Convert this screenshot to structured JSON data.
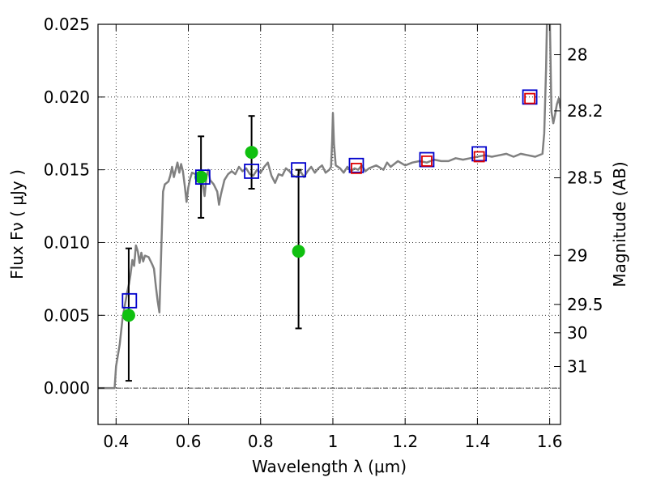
{
  "chart_data": {
    "type": "scatter",
    "xlabel": "Wavelength  λ (μm)",
    "ylabel": "Flux  Fν  ( μJy )",
    "y2label": "Magnitude (AB)",
    "xlim": [
      0.35,
      1.63
    ],
    "ylim": [
      -0.0025,
      0.025
    ],
    "grid": true,
    "x_ticks": [
      {
        "value": 0.4,
        "label": "0.4"
      },
      {
        "value": 0.6,
        "label": "0.6"
      },
      {
        "value": 0.8,
        "label": "0.8"
      },
      {
        "value": 1.0,
        "label": "1"
      },
      {
        "value": 1.2,
        "label": "1.2"
      },
      {
        "value": 1.4,
        "label": "1.4"
      },
      {
        "value": 1.6,
        "label": "1.6"
      }
    ],
    "y_ticks": [
      {
        "value": 0.0,
        "label": "0.000"
      },
      {
        "value": 0.005,
        "label": "0.005"
      },
      {
        "value": 0.01,
        "label": "0.010"
      },
      {
        "value": 0.015,
        "label": "0.015"
      },
      {
        "value": 0.02,
        "label": "0.020"
      },
      {
        "value": 0.025,
        "label": "0.025"
      }
    ],
    "y2_ticks": [
      {
        "flux": 0.02291,
        "label": "28"
      },
      {
        "flux": 0.01905,
        "label": "28.2"
      },
      {
        "flux": 0.01445,
        "label": "28.5"
      },
      {
        "flux": 0.00912,
        "label": "29"
      },
      {
        "flux": 0.00575,
        "label": "29.5"
      },
      {
        "flux": 0.0038,
        "label": "30"
      },
      {
        "flux": 0.00148,
        "label": "31"
      }
    ],
    "series": [
      {
        "kind": "line",
        "color": "#808080",
        "points": [
          [
            0.35,
            0.0
          ],
          [
            0.38,
            0.0
          ],
          [
            0.396,
            0.0
          ],
          [
            0.4,
            0.0015
          ],
          [
            0.41,
            0.003
          ],
          [
            0.418,
            0.0048
          ],
          [
            0.425,
            0.0058
          ],
          [
            0.43,
            0.0065
          ],
          [
            0.436,
            0.0072
          ],
          [
            0.44,
            0.0078
          ],
          [
            0.445,
            0.0088
          ],
          [
            0.45,
            0.0084
          ],
          [
            0.455,
            0.0098
          ],
          [
            0.46,
            0.0094
          ],
          [
            0.465,
            0.0086
          ],
          [
            0.47,
            0.0093
          ],
          [
            0.475,
            0.0087
          ],
          [
            0.48,
            0.0091
          ],
          [
            0.49,
            0.009
          ],
          [
            0.5,
            0.0085
          ],
          [
            0.505,
            0.0082
          ],
          [
            0.51,
            0.007
          ],
          [
            0.515,
            0.006
          ],
          [
            0.52,
            0.0052
          ],
          [
            0.525,
            0.0095
          ],
          [
            0.53,
            0.0135
          ],
          [
            0.535,
            0.014
          ],
          [
            0.54,
            0.0141
          ],
          [
            0.545,
            0.0142
          ],
          [
            0.55,
            0.0146
          ],
          [
            0.555,
            0.0152
          ],
          [
            0.56,
            0.0145
          ],
          [
            0.565,
            0.015
          ],
          [
            0.57,
            0.0155
          ],
          [
            0.575,
            0.0148
          ],
          [
            0.58,
            0.0154
          ],
          [
            0.585,
            0.0149
          ],
          [
            0.59,
            0.0139
          ],
          [
            0.595,
            0.0128
          ],
          [
            0.6,
            0.0138
          ],
          [
            0.605,
            0.0144
          ],
          [
            0.61,
            0.0148
          ],
          [
            0.62,
            0.0147
          ],
          [
            0.63,
            0.0145
          ],
          [
            0.64,
            0.014
          ],
          [
            0.645,
            0.0132
          ],
          [
            0.65,
            0.0145
          ],
          [
            0.655,
            0.015
          ],
          [
            0.66,
            0.0143
          ],
          [
            0.67,
            0.014
          ],
          [
            0.68,
            0.0135
          ],
          [
            0.685,
            0.0126
          ],
          [
            0.69,
            0.0133
          ],
          [
            0.7,
            0.0143
          ],
          [
            0.71,
            0.0147
          ],
          [
            0.72,
            0.0149
          ],
          [
            0.73,
            0.0147
          ],
          [
            0.74,
            0.0152
          ],
          [
            0.75,
            0.0149
          ],
          [
            0.76,
            0.0151
          ],
          [
            0.77,
            0.0147
          ],
          [
            0.78,
            0.0146
          ],
          [
            0.79,
            0.015
          ],
          [
            0.8,
            0.0148
          ],
          [
            0.81,
            0.0152
          ],
          [
            0.82,
            0.0155
          ],
          [
            0.83,
            0.0146
          ],
          [
            0.84,
            0.0141
          ],
          [
            0.85,
            0.0147
          ],
          [
            0.86,
            0.0146
          ],
          [
            0.87,
            0.0151
          ],
          [
            0.88,
            0.0149
          ],
          [
            0.89,
            0.0146
          ],
          [
            0.9,
            0.0145
          ],
          [
            0.91,
            0.0149
          ],
          [
            0.92,
            0.0145
          ],
          [
            0.93,
            0.0149
          ],
          [
            0.94,
            0.0152
          ],
          [
            0.95,
            0.0148
          ],
          [
            0.96,
            0.0151
          ],
          [
            0.97,
            0.0153
          ],
          [
            0.98,
            0.0148
          ],
          [
            0.99,
            0.015
          ],
          [
            0.995,
            0.0152
          ],
          [
            0.998,
            0.017
          ],
          [
            1.0,
            0.0189
          ],
          [
            1.003,
            0.0168
          ],
          [
            1.008,
            0.0153
          ],
          [
            1.02,
            0.0151
          ],
          [
            1.03,
            0.0148
          ],
          [
            1.04,
            0.0152
          ],
          [
            1.05,
            0.0149
          ],
          [
            1.06,
            0.0151
          ],
          [
            1.07,
            0.015
          ],
          [
            1.08,
            0.0153
          ],
          [
            1.09,
            0.0149
          ],
          [
            1.1,
            0.0151
          ],
          [
            1.12,
            0.0153
          ],
          [
            1.14,
            0.015
          ],
          [
            1.15,
            0.0155
          ],
          [
            1.16,
            0.0152
          ],
          [
            1.18,
            0.0156
          ],
          [
            1.2,
            0.0153
          ],
          [
            1.22,
            0.0155
          ],
          [
            1.24,
            0.0156
          ],
          [
            1.26,
            0.0155
          ],
          [
            1.28,
            0.0157
          ],
          [
            1.3,
            0.0156
          ],
          [
            1.32,
            0.0156
          ],
          [
            1.34,
            0.0158
          ],
          [
            1.36,
            0.0157
          ],
          [
            1.38,
            0.0158
          ],
          [
            1.4,
            0.0159
          ],
          [
            1.42,
            0.016
          ],
          [
            1.44,
            0.0159
          ],
          [
            1.46,
            0.016
          ],
          [
            1.48,
            0.0161
          ],
          [
            1.5,
            0.0159
          ],
          [
            1.52,
            0.0161
          ],
          [
            1.54,
            0.016
          ],
          [
            1.56,
            0.0159
          ],
          [
            1.58,
            0.0161
          ],
          [
            1.585,
            0.0175
          ],
          [
            1.59,
            0.022
          ],
          [
            1.593,
            0.026
          ],
          [
            1.6,
            0.026
          ],
          [
            1.605,
            0.019
          ],
          [
            1.61,
            0.0182
          ],
          [
            1.615,
            0.0188
          ],
          [
            1.62,
            0.0195
          ],
          [
            1.625,
            0.0199
          ],
          [
            1.63,
            0.0192
          ]
        ]
      },
      {
        "kind": "markers",
        "marker": "circle",
        "color": "#10c010",
        "points": [
          {
            "x": 0.435,
            "y": 0.005,
            "err_lo": 0.0005,
            "err_hi": 0.0096
          },
          {
            "x": 0.635,
            "y": 0.0145,
            "err_lo": 0.0117,
            "err_hi": 0.0173
          },
          {
            "x": 0.775,
            "y": 0.0162,
            "err_lo": 0.0137,
            "err_hi": 0.0187
          },
          {
            "x": 0.905,
            "y": 0.0094,
            "err_lo": 0.0041,
            "err_hi": 0.015
          }
        ]
      },
      {
        "kind": "markers",
        "marker": "square",
        "color": "#0000cc",
        "points": [
          {
            "x": 0.437,
            "y": 0.006
          },
          {
            "x": 0.64,
            "y": 0.0145
          },
          {
            "x": 0.775,
            "y": 0.0149
          },
          {
            "x": 0.905,
            "y": 0.015
          },
          {
            "x": 1.065,
            "y": 0.0153
          },
          {
            "x": 1.26,
            "y": 0.0157
          },
          {
            "x": 1.405,
            "y": 0.0161
          },
          {
            "x": 1.545,
            "y": 0.02
          }
        ]
      },
      {
        "kind": "markers",
        "marker": "square",
        "color": "#dd0000",
        "points": [
          {
            "x": 1.065,
            "y": 0.0151
          },
          {
            "x": 1.26,
            "y": 0.0156
          },
          {
            "x": 1.405,
            "y": 0.0159
          },
          {
            "x": 1.545,
            "y": 0.0199
          }
        ]
      }
    ]
  }
}
